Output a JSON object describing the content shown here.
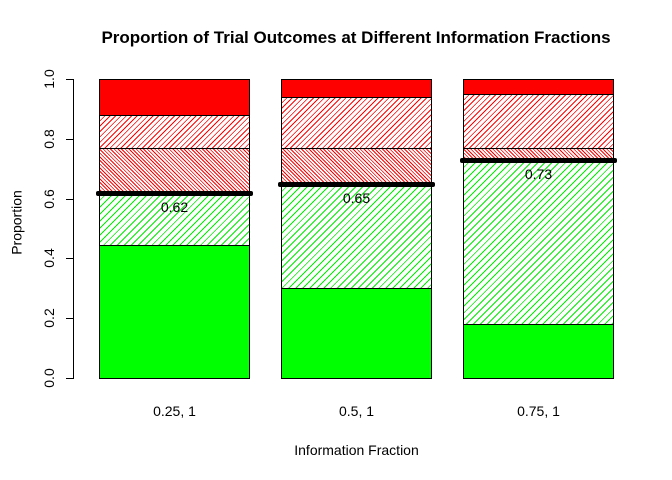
{
  "title": "Proportion of Trial Outcomes at Different Information Fractions",
  "background_color": "#FFFFFF",
  "axis_color": "#000000",
  "text_color": "#000000",
  "chart_data": {
    "type": "bar",
    "stacked": true,
    "title": "Proportion of Trial Outcomes at Different Information Fractions",
    "xlabel": "Information Fraction",
    "ylabel": "Proportion",
    "ylim": [
      0,
      1
    ],
    "yticks": [
      "0.0",
      "0.2",
      "0.4",
      "0.6",
      "0.8",
      "1.0"
    ],
    "grid": false,
    "legend": false,
    "categories": [
      "0.25, 1",
      "0.5, 1",
      "0.75, 1"
    ],
    "series": [
      {
        "name": "solid-green",
        "pattern": "solid",
        "color": "#00FF00",
        "values": [
          0.445,
          0.3,
          0.18
        ]
      },
      {
        "name": "green-hatch",
        "pattern": "hatch45",
        "color": "#00EE00",
        "values": [
          0.175,
          0.35,
          0.55
        ]
      },
      {
        "name": "dense-red-hatch",
        "pattern": "hatch135-dense",
        "color": "#FF0000",
        "values": [
          0.15,
          0.12,
          0.04
        ]
      },
      {
        "name": "sparse-red-hatch",
        "pattern": "hatch45-fine",
        "color": "#FF0000",
        "values": [
          0.11,
          0.17,
          0.18
        ]
      },
      {
        "name": "solid-red",
        "pattern": "solid",
        "color": "#FF0000",
        "values": [
          0.12,
          0.06,
          0.05
        ]
      }
    ],
    "threshold_lines": {
      "values": [
        0.62,
        0.65,
        0.73
      ],
      "labels": [
        "0.62",
        "0.65",
        "0.73"
      ],
      "color": "#000000"
    }
  }
}
